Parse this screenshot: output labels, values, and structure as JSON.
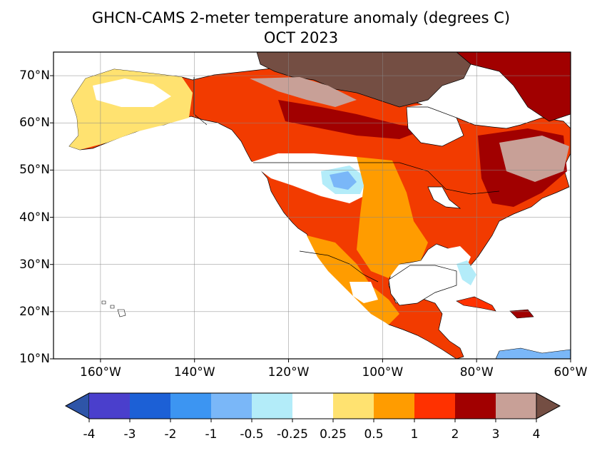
{
  "title": "GHCN-CAMS 2-meter temperature anomaly (degrees C)",
  "subtitle": "OCT 2023",
  "map": {
    "projection": "plate-carree",
    "lon_range": [
      -170,
      -60
    ],
    "lat_range": [
      10,
      75
    ],
    "gridlines": true,
    "lat_ticks": [
      "10°N",
      "20°N",
      "30°N",
      "40°N",
      "50°N",
      "60°N",
      "70°N"
    ],
    "lon_ticks": [
      "160°W",
      "140°W",
      "120°W",
      "100°W",
      "80°W",
      "60°W"
    ]
  },
  "colorbar": {
    "orientation": "horizontal",
    "extend": "both",
    "labels": [
      "-4",
      "-3",
      "-2",
      "-1",
      "-0.5",
      "-0.25",
      "0.25",
      "0.5",
      "1",
      "2",
      "3",
      "4"
    ],
    "colors": [
      "#2e55a8",
      "#4a3fcc",
      "#1c60d6",
      "#3c95f2",
      "#7ab7f8",
      "#b3ecf9",
      "#ffffff",
      "#ffe270",
      "#ff9c00",
      "#ff3100",
      "#a10000",
      "#c8a097",
      "#744e43"
    ]
  }
}
